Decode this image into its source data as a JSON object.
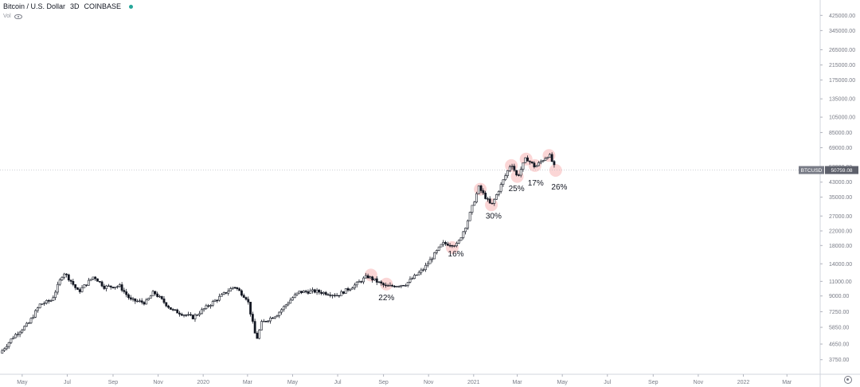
{
  "header": {
    "symbol_name": "Bitcoin / U.S. Dollar",
    "interval": "3D",
    "exchange": "COINBASE",
    "status_color": "#26a69a",
    "volume_label": "Vol"
  },
  "colors": {
    "up": "#ffffff",
    "down": "#131722",
    "wick": "#131722",
    "axis_text": "#787b86",
    "price_line": "#b2b5be",
    "price_tag_bg": "#787b86",
    "highlight": "#f7b4b4"
  },
  "icons": {
    "visibility": "eye-icon",
    "settings": "gear-icon"
  },
  "chart_data": {
    "type": "candlestick",
    "y_scale": "log",
    "ylim": [
      3070,
      525000
    ],
    "xlim": [
      "2019-04-01",
      "2022-04-15"
    ],
    "y_ticks": [
      "3070.00",
      "3750.00",
      "4650.00",
      "5850.00",
      "7250.00",
      "9000.00",
      "11000.00",
      "14000.00",
      "18000.00",
      "22000.00",
      "27000.00",
      "35000.00",
      "43000.00",
      "53000.00",
      "69000.00",
      "85000.00",
      "105000.00",
      "135000.00",
      "175000.00",
      "215000.00",
      "265000.00",
      "345000.00",
      "425000.00",
      "525000.00"
    ],
    "x_ticks": [
      {
        "label": "May",
        "date": "2019-05-01"
      },
      {
        "label": "Jul",
        "date": "2019-07-01"
      },
      {
        "label": "Sep",
        "date": "2019-09-01"
      },
      {
        "label": "Nov",
        "date": "2019-11-01"
      },
      {
        "label": "2020",
        "date": "2020-01-01"
      },
      {
        "label": "Mar",
        "date": "2020-03-01"
      },
      {
        "label": "May",
        "date": "2020-05-01"
      },
      {
        "label": "Jul",
        "date": "2020-07-01"
      },
      {
        "label": "Sep",
        "date": "2020-09-01"
      },
      {
        "label": "Nov",
        "date": "2020-11-01"
      },
      {
        "label": "2021",
        "date": "2021-01-01"
      },
      {
        "label": "Mar",
        "date": "2021-03-01"
      },
      {
        "label": "May",
        "date": "2021-05-01"
      },
      {
        "label": "Jul",
        "date": "2021-07-01"
      },
      {
        "label": "Sep",
        "date": "2021-09-01"
      },
      {
        "label": "Nov",
        "date": "2021-11-01"
      },
      {
        "label": "2022",
        "date": "2022-01-01"
      },
      {
        "label": "Mar",
        "date": "2022-03-01"
      }
    ],
    "current_price": {
      "label": "BTCUSD",
      "value": 50759.08
    },
    "price_path": [
      [
        "2019-04-01",
        4100
      ],
      [
        "2019-04-20",
        5200
      ],
      [
        "2019-05-10",
        6200
      ],
      [
        "2019-05-25",
        8000
      ],
      [
        "2019-06-10",
        8500
      ],
      [
        "2019-06-26",
        12500
      ],
      [
        "2019-07-05",
        11200
      ],
      [
        "2019-07-16",
        9500
      ],
      [
        "2019-08-06",
        11800
      ],
      [
        "2019-08-20",
        10200
      ],
      [
        "2019-09-10",
        10300
      ],
      [
        "2019-09-25",
        8500
      ],
      [
        "2019-10-15",
        8200
      ],
      [
        "2019-10-26",
        9500
      ],
      [
        "2019-11-20",
        7400
      ],
      [
        "2019-12-18",
        6700
      ],
      [
        "2020-01-10",
        8000
      ],
      [
        "2020-02-12",
        10300
      ],
      [
        "2020-03-01",
        8600
      ],
      [
        "2020-03-13",
        4900
      ],
      [
        "2020-03-20",
        6200
      ],
      [
        "2020-04-10",
        7000
      ],
      [
        "2020-05-01",
        8800
      ],
      [
        "2020-05-10",
        9500
      ],
      [
        "2020-06-01",
        9600
      ],
      [
        "2020-07-01",
        9100
      ],
      [
        "2020-07-25",
        10500
      ],
      [
        "2020-08-10",
        11800
      ],
      [
        "2020-09-05",
        10200
      ],
      [
        "2020-10-01",
        10600
      ],
      [
        "2020-10-25",
        13000
      ],
      [
        "2020-11-20",
        18500
      ],
      [
        "2020-12-10",
        18200
      ],
      [
        "2020-12-22",
        24000
      ],
      [
        "2021-01-08",
        40000
      ],
      [
        "2021-01-25",
        31000
      ],
      [
        "2021-02-10",
        44000
      ],
      [
        "2021-02-21",
        56000
      ],
      [
        "2021-03-01",
        46000
      ],
      [
        "2021-03-13",
        60000
      ],
      [
        "2021-03-25",
        53000
      ],
      [
        "2021-04-13",
        63000
      ],
      [
        "2021-04-22",
        50759
      ]
    ],
    "annotations": [
      {
        "label": "22%",
        "date": "2020-09-05",
        "value": 8500
      },
      {
        "label": "16%",
        "date": "2020-12-08",
        "value": 15500
      },
      {
        "label": "30%",
        "date": "2021-01-28",
        "value": 26000
      },
      {
        "label": "25%",
        "date": "2021-02-28",
        "value": 38000
      },
      {
        "label": "17%",
        "date": "2021-03-26",
        "value": 41000
      },
      {
        "label": "26%",
        "date": "2021-04-27",
        "value": 38800
      }
    ],
    "highlights": [
      [
        "2020-08-15",
        12000
      ],
      [
        "2020-09-05",
        10600
      ],
      [
        "2020-12-03",
        17500
      ],
      [
        "2021-01-10",
        39000
      ],
      [
        "2021-01-25",
        31500
      ],
      [
        "2021-02-21",
        54000
      ],
      [
        "2021-03-01",
        46500
      ],
      [
        "2021-03-13",
        59000
      ],
      [
        "2021-03-25",
        54000
      ],
      [
        "2021-04-13",
        62000
      ],
      [
        "2021-04-22",
        50500
      ]
    ]
  }
}
